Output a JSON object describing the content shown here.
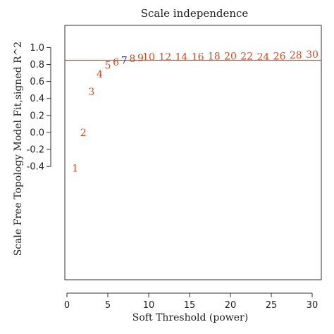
{
  "chart_data": {
    "type": "scatter",
    "title": "Scale independence",
    "xlabel": "Soft Threshold (power)",
    "ylabel": "Scale Free Topology Model Fit,signed R^2",
    "xlim": [
      0,
      31
    ],
    "ylim": [
      -0.45,
      1.0
    ],
    "x_ticks": [
      0,
      5,
      10,
      15,
      20,
      25,
      30
    ],
    "y_ticks": [
      -0.4,
      -0.2,
      0.0,
      0.2,
      0.4,
      0.6,
      0.8,
      1.0
    ],
    "x_tick_labels": [
      "0",
      "5",
      "10",
      "15",
      "20",
      "25",
      "30"
    ],
    "y_tick_labels": [
      "-0.4",
      "-0.2",
      "0.0",
      "0.2",
      "0.4",
      "0.6",
      "0.8",
      "1.0"
    ],
    "grid": false,
    "threshold_line": {
      "y": 0.85,
      "color": "#c8502a"
    },
    "point_color": "#c8502a",
    "highlight_color": "#2b3a8c",
    "points": [
      {
        "x": 1,
        "y": -0.42,
        "label": "1"
      },
      {
        "x": 2,
        "y": 0.0,
        "label": "2"
      },
      {
        "x": 3,
        "y": 0.48,
        "label": "3"
      },
      {
        "x": 4,
        "y": 0.69,
        "label": "4"
      },
      {
        "x": 5,
        "y": 0.79,
        "label": "5"
      },
      {
        "x": 6,
        "y": 0.83,
        "label": "6"
      },
      {
        "x": 7,
        "y": 0.85,
        "label": "7",
        "highlight": true
      },
      {
        "x": 8,
        "y": 0.87,
        "label": "8"
      },
      {
        "x": 9,
        "y": 0.88,
        "label": "9"
      },
      {
        "x": 10,
        "y": 0.89,
        "label": "10"
      },
      {
        "x": 12,
        "y": 0.89,
        "label": "12"
      },
      {
        "x": 14,
        "y": 0.89,
        "label": "14"
      },
      {
        "x": 16,
        "y": 0.89,
        "label": "16"
      },
      {
        "x": 18,
        "y": 0.9,
        "label": "18"
      },
      {
        "x": 20,
        "y": 0.9,
        "label": "20"
      },
      {
        "x": 22,
        "y": 0.9,
        "label": "22"
      },
      {
        "x": 24,
        "y": 0.89,
        "label": "24"
      },
      {
        "x": 26,
        "y": 0.9,
        "label": "26"
      },
      {
        "x": 28,
        "y": 0.91,
        "label": "28"
      },
      {
        "x": 30,
        "y": 0.92,
        "label": "30"
      }
    ]
  }
}
